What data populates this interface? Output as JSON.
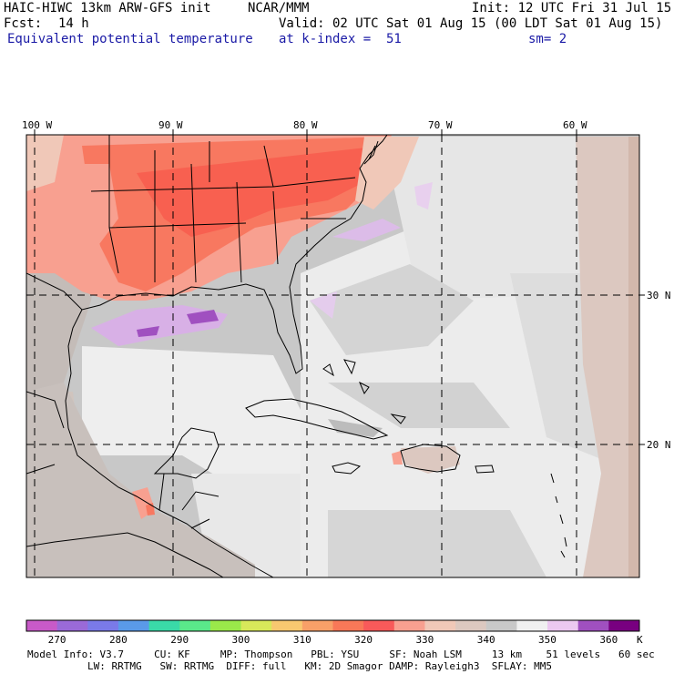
{
  "header": {
    "model_title": "HAIC-HIWC 13km ARW-GFS init",
    "org": "NCAR/MMM",
    "init": "Init: 12 UTC Fri 31 Jul 15",
    "fcst_label": "Fcst:",
    "fcst_value": "14 h",
    "valid": "Valid: 02 UTC Sat 01 Aug 15 (00 LDT Sat 01 Aug 15)",
    "field": "Equivalent potential temperature",
    "level": "at k-index =  51",
    "smooth": "sm= 2"
  },
  "map": {
    "lon_labels": [
      "100 W",
      "90 W",
      "80 W",
      "70 W",
      "60 W"
    ],
    "lat_labels": [
      "30 N",
      "20 N"
    ]
  },
  "colorbar": {
    "unit": "K",
    "tick_labels": [
      "270",
      "280",
      "290",
      "300",
      "310",
      "320",
      "330",
      "340",
      "350",
      "360"
    ],
    "colors": [
      "#c85ac8",
      "#9a6ad8",
      "#7a7ae8",
      "#5a9ae8",
      "#3adaa8",
      "#5ae88a",
      "#9ae84a",
      "#d8e85a",
      "#f8c870",
      "#f8a068",
      "#f87858",
      "#f85a5a",
      "#f8a090",
      "#f0c8b8",
      "#dcc8c0",
      "#c8c8c8",
      "#f0f0f0",
      "#ecc8f0",
      "#a050c0",
      "#780080"
    ]
  },
  "footer": {
    "line1": "Model Info: V3.7     CU: KF     MP: Thompson   PBL: YSU     SF: Noah LSM     13 km    51 levels   60 sec",
    "line2": "LW: RRTMG   SW: RRTMG  DIFF: full   KM: 2D Smagor DAMP: Rayleigh3  SFLAY: MM5"
  }
}
